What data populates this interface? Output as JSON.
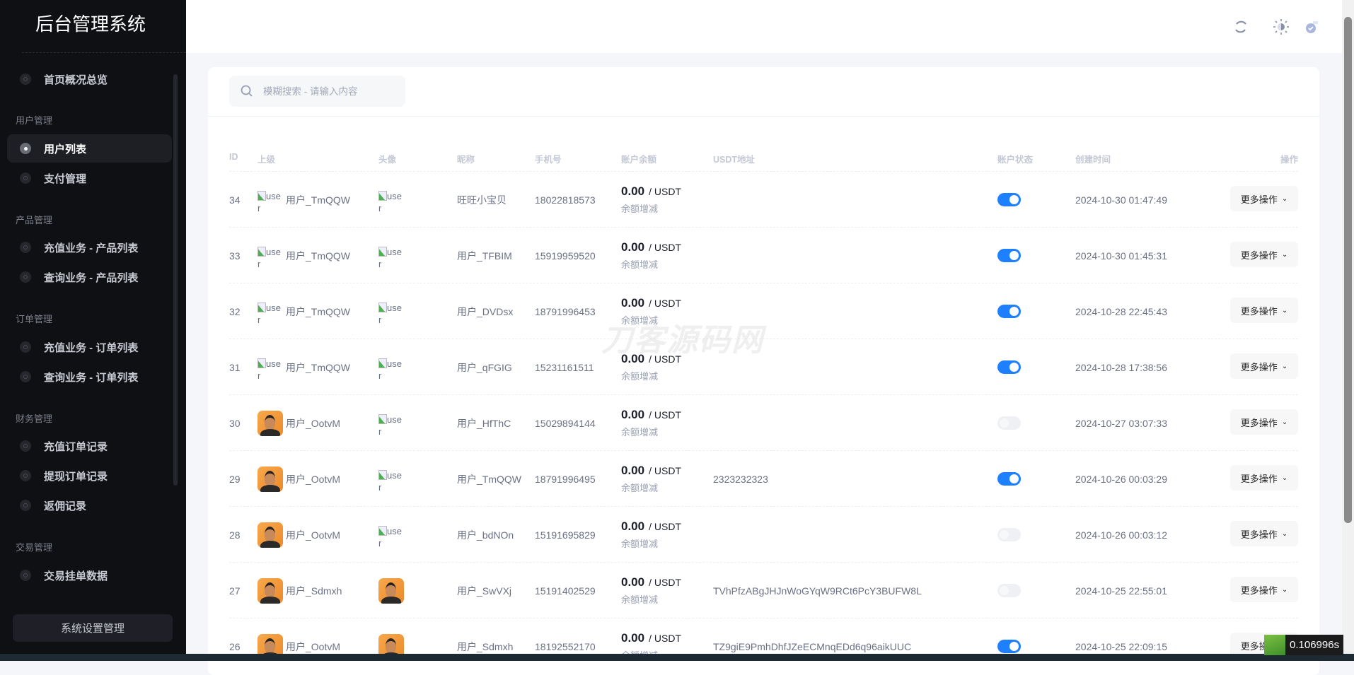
{
  "sidebar": {
    "title": "后台管理系统",
    "items": [
      {
        "type": "item",
        "label": "首页概况总览"
      },
      {
        "type": "group",
        "label": "用户管理"
      },
      {
        "type": "item",
        "label": "用户列表",
        "active": true
      },
      {
        "type": "item",
        "label": "支付管理"
      },
      {
        "type": "group",
        "label": "产品管理"
      },
      {
        "type": "item",
        "label": "充值业务 - 产品列表"
      },
      {
        "type": "item",
        "label": "查询业务 - 产品列表"
      },
      {
        "type": "group",
        "label": "订单管理"
      },
      {
        "type": "item",
        "label": "充值业务 - 订单列表"
      },
      {
        "type": "item",
        "label": "查询业务 - 订单列表"
      },
      {
        "type": "group",
        "label": "财务管理"
      },
      {
        "type": "item",
        "label": "充值订单记录"
      },
      {
        "type": "item",
        "label": "提现订单记录"
      },
      {
        "type": "item",
        "label": "返佣记录"
      },
      {
        "type": "group",
        "label": "交易管理"
      },
      {
        "type": "item",
        "label": "交易挂单数据"
      }
    ],
    "settings_button": "系统设置管理"
  },
  "topbar": {
    "icons": [
      "refresh-icon",
      "theme-toggle-icon",
      "user-avatar-icon"
    ]
  },
  "search": {
    "placeholder": "模糊搜索 - 请输入内容"
  },
  "table": {
    "headers": {
      "id": "ID",
      "parent": "上级",
      "avatar": "头像",
      "nickname": "昵称",
      "phone": "手机号",
      "balance": "账户余额",
      "usdt": "USDT地址",
      "status": "账户状态",
      "created": "创建时间",
      "actions": "操作"
    },
    "broken_alt": "user",
    "balance_unit": "/ USDT",
    "adjust_label": "余额增减",
    "more_label": "更多操作",
    "rows": [
      {
        "id": "34",
        "parent": "用户_TmQQW",
        "parent_avatar": "broken",
        "avatar": "broken",
        "nickname": "旺旺小宝贝",
        "phone": "18022818573",
        "balance": "0.00",
        "usdt": "",
        "status": true,
        "created": "2024-10-30 01:47:49"
      },
      {
        "id": "33",
        "parent": "用户_TmQQW",
        "parent_avatar": "broken",
        "avatar": "broken",
        "nickname": "用户_TFBIM",
        "phone": "15919959520",
        "balance": "0.00",
        "usdt": "",
        "status": true,
        "created": "2024-10-30 01:45:31"
      },
      {
        "id": "32",
        "parent": "用户_TmQQW",
        "parent_avatar": "broken",
        "avatar": "broken",
        "nickname": "用户_DVDsx",
        "phone": "18791996453",
        "balance": "0.00",
        "usdt": "",
        "status": true,
        "created": "2024-10-28 22:45:43"
      },
      {
        "id": "31",
        "parent": "用户_TmQQW",
        "parent_avatar": "broken",
        "avatar": "broken",
        "nickname": "用户_qFGIG",
        "phone": "15231161511",
        "balance": "0.00",
        "usdt": "",
        "status": true,
        "created": "2024-10-28 17:38:56"
      },
      {
        "id": "30",
        "parent": "用户_OotvM",
        "parent_avatar": "photo",
        "avatar": "broken",
        "nickname": "用户_HfThC",
        "phone": "15029894144",
        "balance": "0.00",
        "usdt": "",
        "status": false,
        "created": "2024-10-27 03:07:33"
      },
      {
        "id": "29",
        "parent": "用户_OotvM",
        "parent_avatar": "photo",
        "avatar": "broken",
        "nickname": "用户_TmQQW",
        "phone": "18791996495",
        "balance": "0.00",
        "usdt": "2323232323",
        "status": true,
        "created": "2024-10-26 00:03:29"
      },
      {
        "id": "28",
        "parent": "用户_OotvM",
        "parent_avatar": "photo",
        "avatar": "broken",
        "nickname": "用户_bdNOn",
        "phone": "15191695829",
        "balance": "0.00",
        "usdt": "",
        "status": false,
        "created": "2024-10-26 00:03:12"
      },
      {
        "id": "27",
        "parent": "用户_Sdmxh",
        "parent_avatar": "photo",
        "avatar": "photo",
        "nickname": "用户_SwVXj",
        "phone": "15191402529",
        "balance": "0.00",
        "usdt": "TVhPfzABgJHJnWoGYqW9RCt6PcY3BUFW8L",
        "status": false,
        "created": "2024-10-25 22:55:01"
      },
      {
        "id": "26",
        "parent": "用户_OotvM",
        "parent_avatar": "photo",
        "avatar": "photo",
        "nickname": "用户_Sdmxh",
        "phone": "18192552170",
        "balance": "0.00",
        "usdt": "TZ9giE9PmhDhfJZeECMnqEDd6q96aikUUC",
        "status": true,
        "created": "2024-10-25 22:09:15"
      }
    ]
  },
  "watermark": "刀客源码网",
  "timer": "0.106996s",
  "colors": {
    "accent": "#1e80ff",
    "sidebar_bg": "#0f1014"
  }
}
